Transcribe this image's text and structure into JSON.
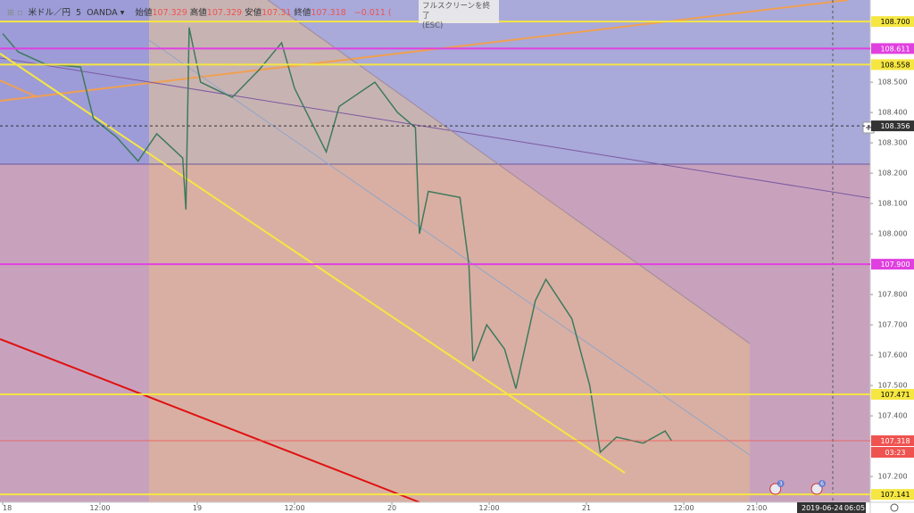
{
  "header": {
    "symbol": "米ドル／円",
    "interval": "5",
    "broker": "OANDA",
    "ohlc": [
      {
        "label": "始値",
        "value": 107.329
      },
      {
        "label": "高値",
        "value": 107.329
      },
      {
        "label": "安値",
        "value": 107.31
      },
      {
        "label": "終値",
        "value": 107.318
      }
    ],
    "change": "−0.011 ("
  },
  "tooltip": {
    "title": "フルスクリーンを終了",
    "key": "(ESC)"
  },
  "footer": {
    "date": "2019-06-24",
    "time": "06:05"
  },
  "chart_data": {
    "type": "line",
    "color": "#3d7a5c",
    "x": [
      0,
      1.9,
      5.2,
      9.6,
      11.2,
      14,
      16.7,
      19,
      22.2,
      22.6,
      23,
      24.4,
      28.3,
      31.6,
      34.4,
      36,
      39.9,
      41.5,
      45.9,
      48.7,
      50.9,
      51.4,
      52.5,
      56.4,
      57.5,
      58,
      59.7,
      61.9,
      63.3,
      65.7,
      67,
      70.2,
      72.4,
      73.7,
      75.7,
      79,
      81.7,
      82.5
    ],
    "values": [
      108.66,
      108.6,
      108.56,
      108.55,
      108.38,
      108.32,
      108.24,
      108.33,
      108.25,
      108.08,
      108.68,
      108.5,
      108.45,
      108.54,
      108.63,
      108.48,
      108.27,
      108.42,
      108.5,
      108.4,
      108.35,
      108.0,
      108.14,
      108.12,
      107.9,
      107.58,
      107.7,
      107.62,
      107.49,
      107.78,
      107.85,
      107.72,
      107.5,
      107.28,
      107.33,
      107.31,
      107.35,
      107.318
    ],
    "xlim": [
      -0.33,
      107.0
    ],
    "ylim": [
      107.115,
      108.771
    ],
    "xticks": [
      {
        "value": 0,
        "label": "18"
      },
      {
        "value": 12,
        "label": "12:00"
      },
      {
        "value": 24,
        "label": "19"
      },
      {
        "value": 36,
        "label": "12:00"
      },
      {
        "value": 48,
        "label": "20"
      },
      {
        "value": 60,
        "label": "12:00"
      },
      {
        "value": 72,
        "label": "21"
      },
      {
        "value": 84,
        "label": "12:00"
      },
      {
        "value": 93,
        "label": "21:00"
      }
    ],
    "yticks": [
      {
        "value": 108.5,
        "label": "108.500"
      },
      {
        "value": 108.4,
        "label": "108.400"
      },
      {
        "value": 108.3,
        "label": "108.300"
      },
      {
        "value": 108.2,
        "label": "108.200"
      },
      {
        "value": 108.1,
        "label": "108.100"
      },
      {
        "value": 108.0,
        "label": "108.000"
      },
      {
        "value": 107.8,
        "label": "107.800"
      },
      {
        "value": 107.7,
        "label": "107.700"
      },
      {
        "value": 107.6,
        "label": "107.600"
      },
      {
        "value": 107.5,
        "label": "107.500"
      },
      {
        "value": 107.4,
        "label": "107.400"
      },
      {
        "value": 107.2,
        "label": "107.200"
      }
    ],
    "levels": [
      {
        "value": 108.7,
        "label": "108.700",
        "color": "#f5e642",
        "text_color": "#000"
      },
      {
        "value": 108.611,
        "label": "108.611",
        "color": "#e040e0",
        "text_color": "#fff"
      },
      {
        "value": 108.558,
        "label": "108.558",
        "color": "#f5e642",
        "text_color": "#000"
      },
      {
        "value": 108.356,
        "label": "108.356",
        "color": "#333",
        "text_color": "#fff",
        "style": "dashed"
      },
      {
        "value": 107.9,
        "label": "107.900",
        "color": "#e040e0",
        "text_color": "#fff"
      },
      {
        "value": 107.471,
        "label": "107.471",
        "color": "#f5e642",
        "text_color": "#000"
      },
      {
        "value": 107.318,
        "label": "107.318",
        "color": "#ef5350",
        "text_color": "#fff",
        "countdown": "03:23"
      },
      {
        "value": 107.141,
        "label": "107.141",
        "color": "#f5e642",
        "text_color": "#000"
      }
    ],
    "events": [
      {
        "x": 95.3,
        "label": "3"
      },
      {
        "x": 100.4,
        "label": "6"
      }
    ]
  }
}
